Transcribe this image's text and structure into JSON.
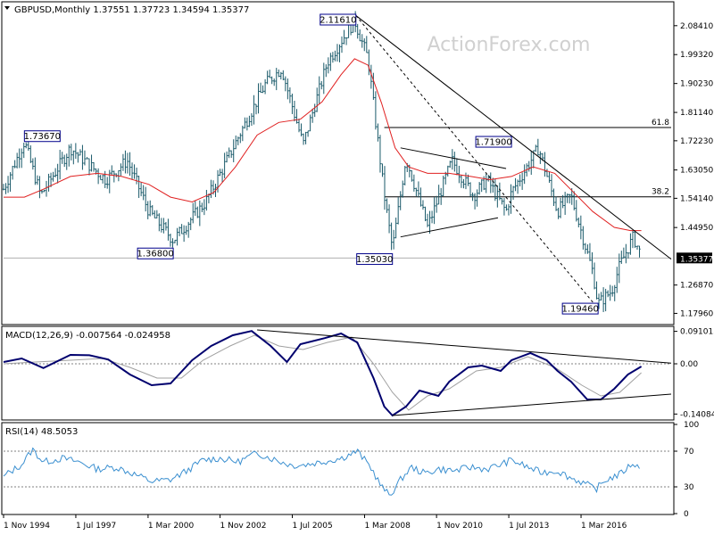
{
  "watermark": "ActionForex.com",
  "colors": {
    "price_bars": "#1a5a6a",
    "sma": "#e02020",
    "macd": "#00006e",
    "macd_signal": "#a0a0a0",
    "rsi": "#3a8fd0",
    "trendline": "#000000",
    "label_box": "#00008b",
    "grid_ref": "#b0b0b0"
  },
  "chart_data": [
    {
      "type": "candlestick",
      "name": "price",
      "header_text": "GBPUSD,Monthly  1.37551  1.37723  1.34594  1.35377",
      "ylim": [
        1.15,
        2.12
      ],
      "y_ticks": [
        "2.08410",
        "1.99320",
        "1.90230",
        "1.81140",
        "1.72230",
        "1.63050",
        "1.54140",
        "1.44950",
        "1.35377",
        "1.26870",
        "1.17960"
      ],
      "y_tick_values": [
        2.0841,
        1.9932,
        1.9023,
        1.8114,
        1.7223,
        1.6305,
        1.5414,
        1.4495,
        1.35377,
        1.2687,
        1.1796
      ],
      "current_price": "1.35377",
      "current_price_value": 1.35377,
      "fib_levels": [
        {
          "label": "61.8",
          "value": 1.764
        },
        {
          "label": "38.2",
          "value": 1.546
        }
      ],
      "price_labels": [
        {
          "text": "2.11610",
          "value": 2.1161,
          "date": 2007.85,
          "anchor": "right"
        },
        {
          "text": "1.73670",
          "value": 1.7367,
          "date": 1995.6,
          "anchor": "left"
        },
        {
          "text": "1.71900",
          "value": 1.719,
          "date": 2013.6,
          "anchor": "right"
        },
        {
          "text": "1.36800",
          "value": 1.368,
          "date": 2001.1,
          "anchor": "right"
        },
        {
          "text": "1.35030",
          "value": 1.3503,
          "date": 2009.2,
          "anchor": "right"
        },
        {
          "text": "1.19460",
          "value": 1.1946,
          "date": 2016.8,
          "anchor": "right"
        }
      ],
      "swing_points": [
        [
          1994.83,
          1.57
        ],
        [
          1995.6,
          1.72
        ],
        [
          1996.2,
          1.55
        ],
        [
          1997.3,
          1.7
        ],
        [
          1998.6,
          1.6
        ],
        [
          1999.4,
          1.66
        ],
        [
          2000.2,
          1.5
        ],
        [
          2001.1,
          1.41
        ],
        [
          2002.3,
          1.53
        ],
        [
          2002.9,
          1.63
        ],
        [
          2003.6,
          1.75
        ],
        [
          2004.5,
          1.9
        ],
        [
          2005.1,
          1.95
        ],
        [
          2005.9,
          1.71
        ],
        [
          2006.8,
          1.97
        ],
        [
          2007.8,
          2.1
        ],
        [
          2008.3,
          1.98
        ],
        [
          2008.9,
          1.55
        ],
        [
          2009.2,
          1.38
        ],
        [
          2009.7,
          1.67
        ],
        [
          2010.5,
          1.45
        ],
        [
          2011.4,
          1.66
        ],
        [
          2012.2,
          1.55
        ],
        [
          2012.7,
          1.6
        ],
        [
          2013.4,
          1.5
        ],
        [
          2013.6,
          1.56
        ],
        [
          2014.6,
          1.7
        ],
        [
          2015.3,
          1.5
        ],
        [
          2015.8,
          1.55
        ],
        [
          2016.3,
          1.4
        ],
        [
          2016.6,
          1.31
        ],
        [
          2016.8,
          1.21
        ],
        [
          2017.3,
          1.25
        ],
        [
          2017.6,
          1.33
        ],
        [
          2018.1,
          1.42
        ],
        [
          2018.4,
          1.36
        ]
      ],
      "sma_points": [
        [
          1994.83,
          1.545
        ],
        [
          1995.6,
          1.545
        ],
        [
          1996.3,
          1.57
        ],
        [
          1997.3,
          1.61
        ],
        [
          1998.3,
          1.62
        ],
        [
          1999.2,
          1.61
        ],
        [
          2000.2,
          1.585
        ],
        [
          2001.0,
          1.545
        ],
        [
          2001.8,
          1.53
        ],
        [
          2002.6,
          1.56
        ],
        [
          2003.4,
          1.64
        ],
        [
          2004.2,
          1.74
        ],
        [
          2005.0,
          1.78
        ],
        [
          2005.8,
          1.79
        ],
        [
          2006.6,
          1.845
        ],
        [
          2007.3,
          1.93
        ],
        [
          2007.8,
          1.98
        ],
        [
          2008.3,
          1.96
        ],
        [
          2008.8,
          1.84
        ],
        [
          2009.3,
          1.7
        ],
        [
          2009.8,
          1.64
        ],
        [
          2010.5,
          1.62
        ],
        [
          2011.3,
          1.62
        ],
        [
          2012.1,
          1.61
        ],
        [
          2012.8,
          1.6
        ],
        [
          2013.6,
          1.61
        ],
        [
          2014.4,
          1.64
        ],
        [
          2015.2,
          1.62
        ],
        [
          2015.9,
          1.56
        ],
        [
          2016.6,
          1.5
        ],
        [
          2017.4,
          1.45
        ],
        [
          2018.0,
          1.44
        ],
        [
          2018.4,
          1.44
        ]
      ],
      "trendlines": [
        {
          "style": "solid",
          "points": [
            [
              2007.85,
              2.116
            ],
            [
              2019.5,
              1.35
            ]
          ]
        },
        {
          "style": "dashed",
          "points": [
            [
              2007.85,
              2.116
            ],
            [
              2016.8,
              1.1946
            ]
          ]
        },
        {
          "style": "solid",
          "points": [
            [
              2009.5,
              1.7
            ],
            [
              2013.4,
              1.635
            ]
          ]
        },
        {
          "style": "solid",
          "points": [
            [
              2009.5,
              1.42
            ],
            [
              2013.1,
              1.48
            ]
          ]
        }
      ]
    },
    {
      "type": "line",
      "name": "macd",
      "header_text": "MACD(12,26,9) -0.007564 -0.024958",
      "ylim": [
        -0.155,
        0.1
      ],
      "y_ticks": [
        "0.091015",
        "0.00",
        "-0.140843"
      ],
      "y_tick_values": [
        0.091015,
        0,
        -0.140843
      ],
      "zero_line": 0,
      "macd_points": [
        [
          1994.83,
          0.005
        ],
        [
          1995.5,
          0.015
        ],
        [
          1996.3,
          -0.012
        ],
        [
          1997.3,
          0.025
        ],
        [
          1998.0,
          0.024
        ],
        [
          1998.7,
          0.012
        ],
        [
          1999.5,
          -0.03
        ],
        [
          2000.3,
          -0.06
        ],
        [
          2001.0,
          -0.055
        ],
        [
          2001.8,
          0.01
        ],
        [
          2002.5,
          0.05
        ],
        [
          2003.3,
          0.08
        ],
        [
          2004.0,
          0.092
        ],
        [
          2004.7,
          0.05
        ],
        [
          2005.3,
          0.005
        ],
        [
          2005.8,
          0.055
        ],
        [
          2006.7,
          0.072
        ],
        [
          2007.3,
          0.085
        ],
        [
          2007.9,
          0.06
        ],
        [
          2008.5,
          -0.04
        ],
        [
          2008.9,
          -0.12
        ],
        [
          2009.2,
          -0.145
        ],
        [
          2009.7,
          -0.12
        ],
        [
          2010.2,
          -0.075
        ],
        [
          2010.9,
          -0.09
        ],
        [
          2011.3,
          -0.05
        ],
        [
          2012.0,
          -0.01
        ],
        [
          2012.5,
          -0.005
        ],
        [
          2013.2,
          -0.02
        ],
        [
          2013.6,
          0.01
        ],
        [
          2014.3,
          0.03
        ],
        [
          2014.9,
          0.01
        ],
        [
          2015.3,
          -0.02
        ],
        [
          2015.8,
          -0.05
        ],
        [
          2016.4,
          -0.1
        ],
        [
          2016.9,
          -0.1
        ],
        [
          2017.4,
          -0.07
        ],
        [
          2017.9,
          -0.03
        ],
        [
          2018.4,
          -0.0076
        ]
      ],
      "signal_points": [
        [
          1994.83,
          0.0
        ],
        [
          1996.0,
          0.005
        ],
        [
          1997.3,
          0.01
        ],
        [
          1998.5,
          0.015
        ],
        [
          1999.5,
          -0.01
        ],
        [
          2000.5,
          -0.04
        ],
        [
          2001.4,
          -0.04
        ],
        [
          2002.2,
          0.01
        ],
        [
          2003.2,
          0.05
        ],
        [
          2004.1,
          0.08
        ],
        [
          2005.0,
          0.05
        ],
        [
          2005.9,
          0.04
        ],
        [
          2006.8,
          0.06
        ],
        [
          2007.7,
          0.075
        ],
        [
          2008.5,
          0.0
        ],
        [
          2009.2,
          -0.08
        ],
        [
          2009.8,
          -0.13
        ],
        [
          2010.5,
          -0.09
        ],
        [
          2011.3,
          -0.07
        ],
        [
          2012.3,
          -0.02
        ],
        [
          2013.2,
          -0.01
        ],
        [
          2014.2,
          0.02
        ],
        [
          2015.2,
          -0.01
        ],
        [
          2016.2,
          -0.06
        ],
        [
          2016.9,
          -0.09
        ],
        [
          2017.6,
          -0.08
        ],
        [
          2018.4,
          -0.025
        ]
      ],
      "trendlines": [
        {
          "style": "solid",
          "points": [
            [
              2004.2,
              0.095
            ],
            [
              2019.5,
              0.002
            ]
          ]
        },
        {
          "style": "solid",
          "points": [
            [
              2009.2,
              -0.145
            ],
            [
              2019.5,
              -0.085
            ]
          ]
        }
      ]
    },
    {
      "type": "line",
      "name": "rsi",
      "header_text": "RSI(14) 48.5053",
      "ylim": [
        0,
        100
      ],
      "y_ticks": [
        "100",
        "70",
        "30",
        "0"
      ],
      "y_tick_values": [
        100,
        70,
        30,
        0
      ],
      "rsi_points": [
        [
          1994.83,
          42
        ],
        [
          1995.5,
          55
        ],
        [
          1995.9,
          72
        ],
        [
          1996.3,
          58
        ],
        [
          1997.0,
          62
        ],
        [
          1997.6,
          58
        ],
        [
          1998.3,
          50
        ],
        [
          1999.0,
          52
        ],
        [
          1999.6,
          45
        ],
        [
          2000.3,
          36
        ],
        [
          2001.0,
          38
        ],
        [
          2001.6,
          48
        ],
        [
          2002.2,
          60
        ],
        [
          2002.8,
          62
        ],
        [
          2003.5,
          58
        ],
        [
          2004.2,
          68
        ],
        [
          2004.9,
          60
        ],
        [
          2005.5,
          54
        ],
        [
          2006.0,
          55
        ],
        [
          2006.6,
          58
        ],
        [
          2007.3,
          62
        ],
        [
          2007.9,
          70
        ],
        [
          2008.4,
          52
        ],
        [
          2008.8,
          30
        ],
        [
          2009.1,
          20
        ],
        [
          2009.5,
          38
        ],
        [
          2009.9,
          52
        ],
        [
          2010.4,
          45
        ],
        [
          2010.9,
          50
        ],
        [
          2011.5,
          48
        ],
        [
          2012.1,
          52
        ],
        [
          2012.7,
          50
        ],
        [
          2013.2,
          55
        ],
        [
          2013.6,
          60
        ],
        [
          2014.2,
          52
        ],
        [
          2014.7,
          46
        ],
        [
          2015.3,
          48
        ],
        [
          2015.8,
          40
        ],
        [
          2016.3,
          34
        ],
        [
          2016.7,
          27
        ],
        [
          2017.1,
          38
        ],
        [
          2017.6,
          44
        ],
        [
          2018.1,
          57
        ],
        [
          2018.4,
          48.5
        ]
      ]
    }
  ],
  "x_axis": {
    "date_range": [
      1994.83,
      2019.5
    ],
    "tick_labels": [
      "1 Nov 1994",
      "1 Jul 1997",
      "1 Mar 2000",
      "1 Nov 2002",
      "1 Jul 2005",
      "1 Mar 2008",
      "1 Nov 2010",
      "1 Jul 2013",
      "1 Mar 2016"
    ],
    "tick_values": [
      1994.83,
      1997.5,
      2000.17,
      2002.83,
      2005.5,
      2008.17,
      2010.83,
      2013.5,
      2016.17
    ]
  }
}
